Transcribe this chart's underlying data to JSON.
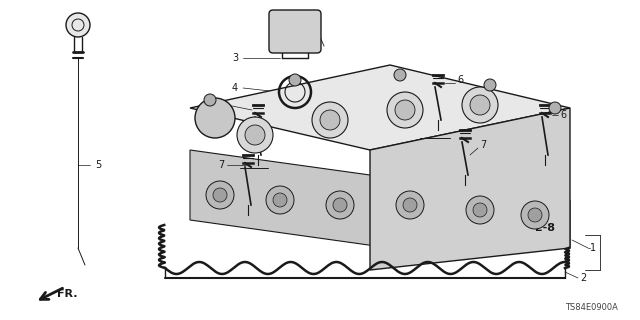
{
  "bg_color": "#ffffff",
  "fig_width": 6.4,
  "fig_height": 3.2,
  "dpi": 100,
  "watermark": "TS84E0900A",
  "text_color": "#1a1a1a",
  "line_color": "#1a1a1a",
  "lw_main": 1.0,
  "lw_thin": 0.6,
  "lw_leader": 0.5
}
